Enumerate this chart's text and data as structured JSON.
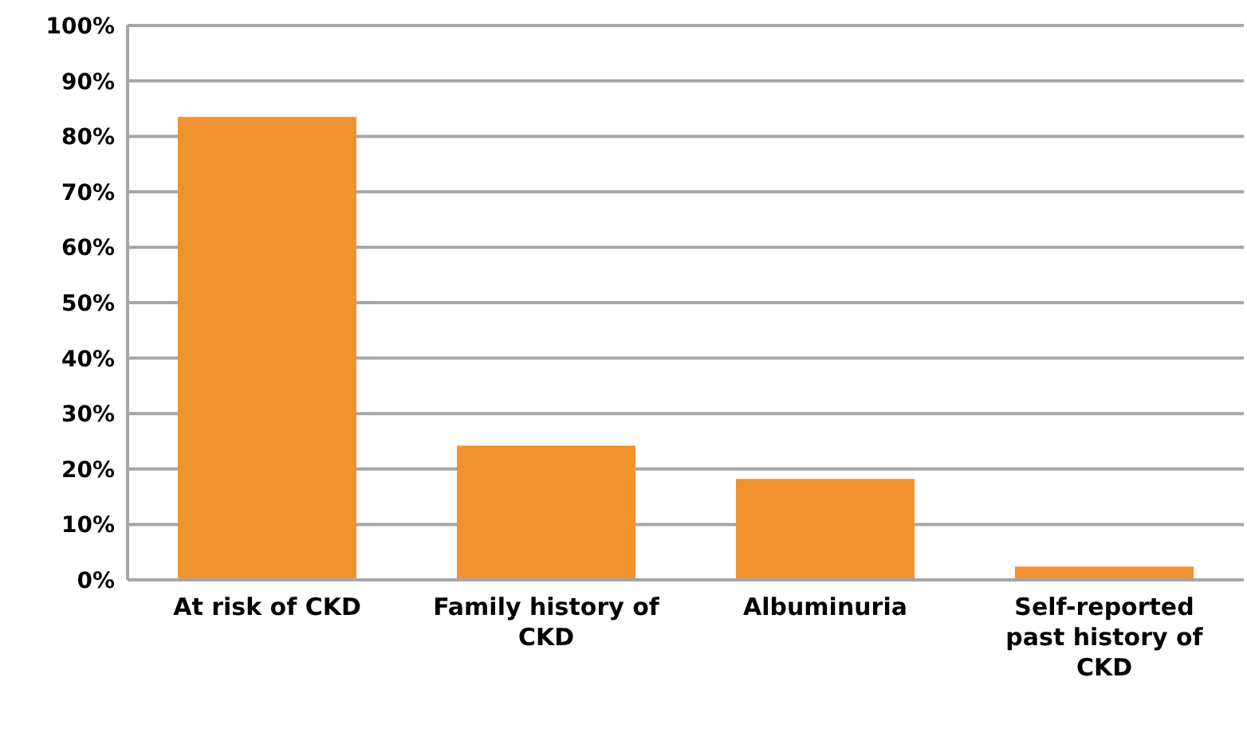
{
  "chart_data": {
    "type": "bar",
    "categories": [
      "At risk of CKD",
      "Family history of CKD",
      "Albuminuria",
      "Self-reported past history of CKD"
    ],
    "values": [
      83.5,
      24.2,
      18.2,
      2.4
    ],
    "color": "#f0922f",
    "ylim": [
      0,
      100
    ],
    "yticks": [
      {
        "value": 0,
        "label": "0%"
      },
      {
        "value": 10,
        "label": "10%"
      },
      {
        "value": 20,
        "label": "20%"
      },
      {
        "value": 30,
        "label": "30%"
      },
      {
        "value": 40,
        "label": "40%"
      },
      {
        "value": 50,
        "label": "50%"
      },
      {
        "value": 60,
        "label": "60%"
      },
      {
        "value": 70,
        "label": "70%"
      },
      {
        "value": 80,
        "label": "80%"
      },
      {
        "value": 90,
        "label": "90%"
      },
      {
        "value": 100,
        "label": "100%"
      }
    ],
    "grid": "y"
  }
}
